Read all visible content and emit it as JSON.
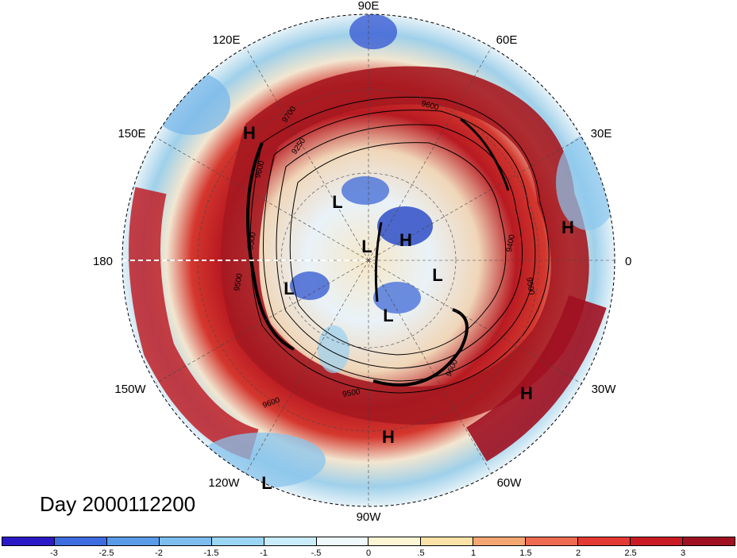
{
  "title": "Day 2000112200",
  "longitude_labels": {
    "e90": "90E",
    "e60": "60E",
    "e120": "120E",
    "e150": "150E",
    "e30": "30E",
    "lon180": "180",
    "lon0": "0",
    "w150": "150W",
    "w30": "30W",
    "w120": "120W",
    "w60": "60W",
    "w90": "90W"
  },
  "pressure_centers": [
    {
      "type": "H",
      "label": "H"
    },
    {
      "type": "H",
      "label": "H"
    },
    {
      "type": "H",
      "label": "H"
    },
    {
      "type": "H",
      "label": "H"
    },
    {
      "type": "H",
      "label": "H"
    },
    {
      "type": "L",
      "label": "L"
    },
    {
      "type": "L",
      "label": "L"
    },
    {
      "type": "L",
      "label": "L"
    },
    {
      "type": "L",
      "label": "L"
    },
    {
      "type": "L",
      "label": "L"
    },
    {
      "type": "L",
      "label": "L"
    }
  ],
  "contour_labels": [
    "9600",
    "9700",
    "9250",
    "9600",
    "9500",
    "9500",
    "9400",
    "9500",
    "9600",
    "9500",
    "9600"
  ],
  "colorbar": {
    "ticks": [
      "-3",
      "-2.5",
      "-2",
      "-1.5",
      "-1",
      "-.5",
      "0",
      ".5",
      "1",
      "1.5",
      "2",
      "2.5",
      "3"
    ],
    "colors": [
      "#2b19c8",
      "#3d6ce0",
      "#5a9be8",
      "#7dbdf0",
      "#9ad7f5",
      "#c9ecfa",
      "#eef8fd",
      "#fdf6d5",
      "#fbe3a8",
      "#f4a772",
      "#ee6a50",
      "#e43a34",
      "#c81b24",
      "#a01020"
    ]
  }
}
